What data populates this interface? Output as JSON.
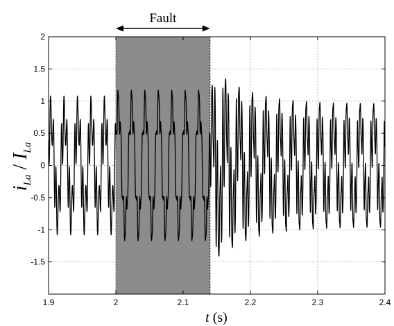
{
  "chart_data": {
    "type": "line",
    "title": "",
    "xlabel": {
      "italic": "t",
      "unit": " (s)"
    },
    "ylabel": {
      "num_base": "i",
      "num_sub": "La",
      "slash": " / ",
      "den_base": "I",
      "den_sub": "La"
    },
    "xlim": [
      1.9,
      2.4
    ],
    "ylim": [
      -2,
      2
    ],
    "x_ticks": [
      1.9,
      2.0,
      2.1,
      2.2,
      2.3,
      2.4
    ],
    "x_tick_labels": [
      "1.9",
      "2",
      "2.1",
      "2.2",
      "2.3",
      "2.4"
    ],
    "y_ticks": [
      -1.5,
      -1,
      -0.5,
      0,
      0.5,
      1,
      1.5,
      2
    ],
    "y_tick_labels": [
      "-1.5",
      "-1",
      "-0.5",
      "0",
      "0.5",
      "1",
      "1.5",
      "2"
    ],
    "grid": true,
    "fault_region": {
      "label": "Fault",
      "x_start": 2.0,
      "x_end": 2.14,
      "color": "#8c8c8c"
    },
    "waveform": {
      "fundamental_hz": 50,
      "harmonic_amplitude_pre": 0.55,
      "harmonic_amplitude_fault": 0.25,
      "harmonic_amplitude_post_start": 1.05,
      "harmonic_amplitude_post_end": 0.6,
      "peak_pre": 1.05,
      "peak_fault": 1.15,
      "peak_post_max": 1.65,
      "peak_post_end": 0.98
    },
    "line_color": "#000000"
  }
}
